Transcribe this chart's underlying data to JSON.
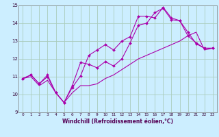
{
  "title": "",
  "xlabel": "Windchill (Refroidissement éolien,°C)",
  "bg_color": "#cceeff",
  "grid_color": "#aaccbb",
  "line_color": "#aa00aa",
  "xlim": [
    -0.5,
    23.5
  ],
  "ylim": [
    9,
    15
  ],
  "yticks": [
    9,
    10,
    11,
    12,
    13,
    14,
    15
  ],
  "xticks": [
    0,
    1,
    2,
    3,
    4,
    5,
    6,
    7,
    8,
    9,
    10,
    11,
    12,
    13,
    14,
    15,
    16,
    17,
    18,
    19,
    20,
    21,
    22,
    23
  ],
  "line1_x": [
    0,
    1,
    2,
    3,
    4,
    5,
    6,
    7,
    8,
    9,
    10,
    11,
    12,
    13,
    14,
    15,
    16,
    17,
    18,
    19,
    20,
    21,
    22,
    23
  ],
  "line1_y": [
    10.9,
    11.1,
    10.6,
    11.1,
    10.1,
    9.55,
    10.5,
    11.8,
    11.7,
    11.5,
    11.85,
    11.6,
    12.0,
    12.9,
    13.9,
    14.0,
    14.6,
    14.85,
    14.2,
    14.15,
    13.5,
    12.85,
    12.6,
    12.6
  ],
  "line2_x": [
    0,
    1,
    2,
    3,
    4,
    5,
    6,
    7,
    8,
    9,
    10,
    11,
    12,
    13,
    14,
    15,
    16,
    17,
    18,
    19,
    20,
    21,
    22,
    23
  ],
  "line2_y": [
    10.9,
    11.1,
    10.6,
    11.0,
    10.1,
    9.55,
    10.4,
    11.05,
    12.2,
    12.5,
    12.8,
    12.5,
    13.0,
    13.25,
    14.4,
    14.4,
    14.3,
    14.9,
    14.3,
    14.15,
    13.3,
    12.9,
    12.6,
    12.6
  ],
  "line3_x": [
    0,
    1,
    2,
    3,
    4,
    5,
    6,
    7,
    8,
    9,
    10,
    11,
    12,
    13,
    14,
    15,
    16,
    17,
    18,
    19,
    20,
    21,
    22,
    23
  ],
  "line3_y": [
    10.9,
    11.0,
    10.5,
    10.8,
    10.1,
    9.55,
    10.1,
    10.5,
    10.5,
    10.6,
    10.9,
    11.1,
    11.4,
    11.7,
    12.0,
    12.2,
    12.4,
    12.6,
    12.8,
    13.0,
    13.3,
    13.5,
    12.5,
    12.6
  ]
}
